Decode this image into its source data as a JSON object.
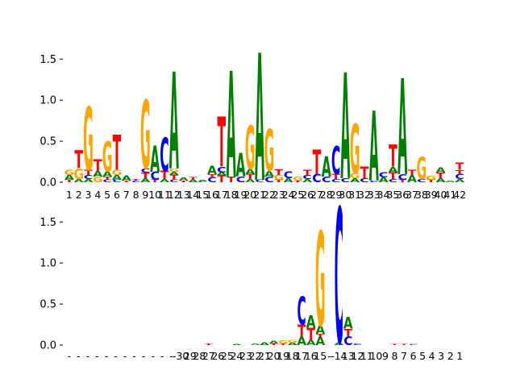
{
  "chart_data": [
    {
      "type": "sequence-logo",
      "ylim": [
        0,
        1.65
      ],
      "yticks": [
        0.0,
        0.5,
        1.0,
        1.5
      ],
      "ytick_labels": [
        "0.0",
        "0.5",
        "1.0",
        "1.5"
      ],
      "positions": [
        "1",
        "2",
        "3",
        "4",
        "5",
        "6",
        "7",
        "8",
        "9",
        "10",
        "11",
        "12",
        "13",
        "14",
        "15",
        "16",
        "17",
        "18",
        "19",
        "20",
        "21",
        "22",
        "23",
        "24",
        "25",
        "26",
        "27",
        "28",
        "29",
        "30",
        "31",
        "32",
        "33",
        "34",
        "35",
        "36",
        "37",
        "38",
        "39",
        "40",
        "41",
        "42"
      ],
      "columns": [
        [
          [
            "T",
            0.03
          ],
          [
            "A",
            0.06
          ],
          [
            "G",
            0.06
          ]
        ],
        [
          [
            "A",
            0.04
          ],
          [
            "G",
            0.13
          ],
          [
            "T",
            0.22
          ]
        ],
        [
          [
            "A",
            0.04
          ],
          [
            "C",
            0.05
          ],
          [
            "T",
            0.06
          ],
          [
            "G",
            0.77
          ]
        ],
        [
          [
            "G",
            0.07
          ],
          [
            "A",
            0.07
          ],
          [
            "T",
            0.14
          ]
        ],
        [
          [
            "C",
            0.03
          ],
          [
            "T",
            0.04
          ],
          [
            "A",
            0.06
          ],
          [
            "G",
            0.37
          ]
        ],
        [
          [
            "C",
            0.03
          ],
          [
            "A",
            0.06
          ],
          [
            "G",
            0.06
          ],
          [
            "T",
            0.43
          ]
        ],
        [
          [
            "T",
            0.02
          ],
          [
            "A",
            0.06
          ]
        ],
        [
          [
            "C",
            0.02
          ],
          [
            "T",
            0.02
          ]
        ],
        [
          [
            "A",
            0.05
          ],
          [
            "T",
            0.07
          ],
          [
            "C",
            0.05
          ],
          [
            "G",
            0.83
          ]
        ],
        [
          [
            "T",
            0.03
          ],
          [
            "C",
            0.1
          ],
          [
            "A",
            0.32
          ]
        ],
        [
          [
            "A",
            0.04
          ],
          [
            "T",
            0.1
          ],
          [
            "C",
            0.41
          ]
        ],
        [
          [
            "C",
            0.03
          ],
          [
            "T",
            0.06
          ],
          [
            "A",
            0.04
          ],
          [
            "G",
            0.04
          ],
          [
            "A",
            1.18
          ]
        ],
        [
          [
            "T",
            0.02
          ],
          [
            "A",
            0.04
          ]
        ],
        [
          [
            "A",
            0.03
          ],
          [
            "T",
            0.03
          ]
        ],
        [
          [
            "C",
            0.01
          ],
          [
            "A",
            0.02
          ]
        ],
        [
          [
            "C",
            0.06
          ],
          [
            "T",
            0.04
          ],
          [
            "A",
            0.1
          ]
        ],
        [
          [
            "T",
            0.09
          ],
          [
            "A",
            0.03
          ],
          [
            "C",
            0.07
          ],
          [
            "T",
            0.61
          ]
        ],
        [
          [
            "T",
            0.07
          ],
          [
            "A",
            1.29
          ]
        ],
        [
          [
            "C",
            0.07
          ],
          [
            "A",
            0.29
          ]
        ],
        [
          [
            "A",
            0.04
          ],
          [
            "T",
            0.06
          ],
          [
            "A",
            0.06
          ],
          [
            "G",
            0.53
          ]
        ],
        [
          [
            "C",
            0.03
          ],
          [
            "A",
            1.55
          ]
        ],
        [
          [
            "C",
            0.07
          ],
          [
            "A",
            0.07
          ],
          [
            "G",
            0.51
          ]
        ],
        [
          [
            "T",
            0.03
          ],
          [
            "G",
            0.06
          ],
          [
            "T",
            0.07
          ]
        ],
        [
          [
            "A",
            0.05
          ],
          [
            "C",
            0.08
          ]
        ],
        [
          [
            "T",
            0.02
          ],
          [
            "G",
            0.05
          ]
        ],
        [
          [
            "A",
            0.04
          ],
          [
            "C",
            0.05
          ],
          [
            "T",
            0.06
          ]
        ],
        [
          [
            "C",
            0.1
          ],
          [
            "T",
            0.3
          ]
        ],
        [
          [
            "C",
            0.07
          ],
          [
            "A",
            0.25
          ]
        ],
        [
          [
            "C",
            0.04
          ],
          [
            "T",
            0.06
          ],
          [
            "C",
            0.34
          ]
        ],
        [
          [
            "C",
            0.05
          ],
          [
            "A",
            1.29
          ]
        ],
        [
          [
            "A",
            0.05
          ],
          [
            "G",
            0.06
          ],
          [
            "G",
            0.6
          ]
        ],
        [
          [
            "C",
            0.05
          ],
          [
            "T",
            0.14
          ]
        ],
        [
          [
            "C",
            0.02
          ],
          [
            "A",
            0.85
          ]
        ],
        [
          [
            "A",
            0.06
          ],
          [
            "C",
            0.06
          ]
        ],
        [
          [
            "C",
            0.04
          ],
          [
            "T",
            0.08
          ],
          [
            "A",
            0.07
          ],
          [
            "T",
            0.27
          ]
        ],
        [
          [
            "T",
            0.03
          ],
          [
            "C",
            0.07
          ],
          [
            "A",
            1.17
          ]
        ],
        [
          [
            "A",
            0.09
          ],
          [
            "T",
            0.06
          ]
        ],
        [
          [
            "C",
            0.04
          ],
          [
            "G",
            0.27
          ]
        ],
        [
          [
            "T",
            0.03
          ],
          [
            "G",
            0.05
          ]
        ],
        [
          [
            "A",
            0.05
          ],
          [
            "T",
            0.07
          ],
          [
            "A",
            0.06
          ]
        ],
        [
          [
            "A",
            0.02
          ]
        ],
        [
          [
            "A",
            0.04
          ],
          [
            "C",
            0.06
          ],
          [
            "T",
            0.05
          ],
          [
            "T",
            0.09
          ]
        ]
      ]
    },
    {
      "type": "sequence-logo",
      "ylim": [
        0,
        1.65
      ],
      "yticks": [
        0.0,
        0.5,
        1.0,
        1.5
      ],
      "ytick_labels": [
        "0.0",
        "0.5",
        "1.0",
        "1.5"
      ],
      "positions": [
        "-",
        "-",
        "-",
        "-",
        "-",
        "-",
        "-",
        "-",
        "-",
        "-",
        "-",
        "-",
        "-30",
        "29",
        "28",
        "27",
        "26",
        "25",
        "24",
        "23",
        "22",
        "21",
        "20",
        "19",
        "18",
        "17",
        "16",
        "15",
        "-",
        "-14",
        "13",
        "12",
        "11",
        "10",
        "9",
        "8",
        "7",
        "6",
        "5",
        "4",
        "3",
        "2",
        "1"
      ],
      "columns": [
        [],
        [],
        [],
        [],
        [],
        [],
        [],
        [],
        [],
        [],
        [],
        [],
        [],
        [],
        [],
        [
          [
            "T",
            0.02
          ]
        ],
        [],
        [],
        [
          [
            "A",
            0.01
          ]
        ],
        [],
        [
          [
            "A",
            0.02
          ]
        ],
        [
          [
            "A",
            0.03
          ]
        ],
        [
          [
            "T",
            0.02
          ],
          [
            "A",
            0.03
          ]
        ],
        [
          [
            "T",
            0.02
          ],
          [
            "G",
            0.04
          ]
        ],
        [
          [
            "A",
            0.03
          ],
          [
            "G",
            0.03
          ]
        ],
        [
          [
            "A",
            0.1
          ],
          [
            "T",
            0.15
          ],
          [
            "C",
            0.34
          ]
        ],
        [
          [
            "A",
            0.06
          ],
          [
            "T",
            0.15
          ],
          [
            "A",
            0.15
          ]
        ],
        [
          [
            "A",
            0.1
          ],
          [
            "T",
            0.04
          ],
          [
            "A",
            0.1
          ],
          [
            "G",
            1.15
          ]
        ],
        [],
        [
          [
            "A",
            0.03
          ],
          [
            "C",
            1.65
          ]
        ],
        [
          [
            "C",
            0.11
          ],
          [
            "T",
            0.09
          ],
          [
            "A",
            0.14
          ]
        ],
        [
          [
            "C",
            0.02
          ]
        ],
        [],
        [],
        [],
        [
          [
            "T",
            0.01
          ]
        ],
        [
          [
            "T",
            0.01
          ]
        ],
        [
          [
            "C",
            0.01
          ]
        ],
        [],
        [],
        [],
        [],
        []
      ]
    }
  ],
  "colors": {
    "A": "#008000",
    "C": "#0000ff",
    "G": "#ffa500",
    "T": "#ff0000"
  }
}
